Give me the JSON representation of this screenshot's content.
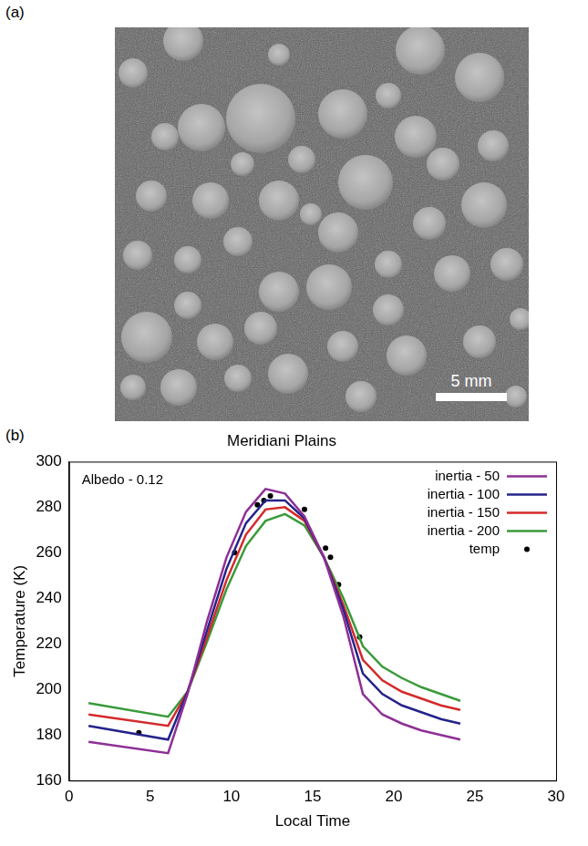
{
  "panel_labels": [
    "(a)",
    "(b)"
  ],
  "photo": {
    "scale_bar": "5 mm"
  },
  "chart_data": {
    "type": "line",
    "title": "Meridiani Plains",
    "annotation": "Albedo - 0.12",
    "x_label": "Local Time",
    "y_label": "Temperature (K)",
    "xlim": [
      0,
      30
    ],
    "xticks": [
      0,
      5,
      10,
      15,
      20,
      25,
      30
    ],
    "ylim": [
      160,
      300
    ],
    "yticks": [
      160,
      180,
      200,
      220,
      240,
      260,
      280,
      300
    ],
    "grid": false,
    "legend": "upper right",
    "series": [
      {
        "name": "inertia - 50",
        "color": "#8e2f96",
        "type": "line",
        "line_style": "solid",
        "x": [
          1.2,
          6.1,
          7.3,
          8.5,
          9.7,
          10.9,
          12.1,
          13.3,
          14.5,
          15.7,
          16.9,
          18.1,
          19.3,
          20.5,
          21.7,
          22.9,
          24.1
        ],
        "values": [
          177,
          172,
          198,
          230,
          258,
          278,
          288,
          286,
          276,
          258,
          232,
          198,
          189,
          185,
          182,
          180,
          178
        ]
      },
      {
        "name": "inertia - 100",
        "color": "#24238a",
        "type": "line",
        "line_style": "solid",
        "x": [
          1.2,
          6.1,
          7.3,
          8.5,
          9.7,
          10.9,
          12.1,
          13.3,
          14.5,
          15.7,
          16.9,
          18.1,
          19.3,
          20.5,
          21.7,
          22.9,
          24.1
        ],
        "values": [
          184,
          178,
          199,
          226,
          253,
          273,
          283,
          283,
          275,
          258,
          235,
          207,
          198,
          193,
          190,
          187,
          185
        ]
      },
      {
        "name": "inertia - 150",
        "color": "#d42a2a",
        "type": "line",
        "line_style": "solid",
        "x": [
          1.2,
          6.1,
          7.3,
          8.5,
          9.7,
          10.9,
          12.1,
          13.3,
          14.5,
          15.7,
          16.9,
          18.1,
          19.3,
          20.5,
          21.7,
          22.9,
          24.1
        ],
        "values": [
          189,
          184,
          199,
          223,
          248,
          268,
          279,
          280,
          274,
          258,
          237,
          213,
          204,
          199,
          196,
          193,
          191
        ]
      },
      {
        "name": "inertia - 200",
        "color": "#3a9a3a",
        "type": "line",
        "line_style": "solid",
        "x": [
          1.2,
          6.1,
          7.3,
          8.5,
          9.7,
          10.9,
          12.1,
          13.3,
          14.5,
          15.7,
          16.9,
          18.1,
          19.3,
          20.5,
          21.7,
          22.9,
          24.1
        ],
        "values": [
          194,
          188,
          199,
          221,
          244,
          263,
          274,
          277,
          272,
          258,
          240,
          219,
          210,
          205,
          201,
          198,
          195
        ]
      },
      {
        "name": "temp",
        "color": "#000000",
        "type": "scatter",
        "marker": "circle",
        "x": [
          4.3,
          10.2,
          11.6,
          12.0,
          12.4,
          14.5,
          15.8,
          16.1,
          16.6,
          17.9
        ],
        "values": [
          181,
          260,
          281,
          283,
          285,
          279,
          262,
          258,
          246,
          223
        ]
      }
    ]
  }
}
